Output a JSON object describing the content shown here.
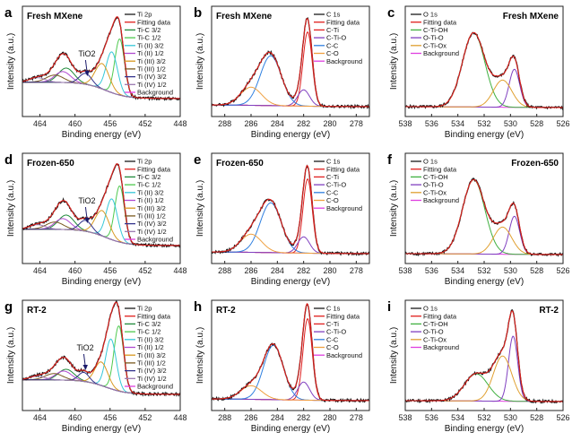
{
  "figure": {
    "rows": [
      "Fresh MXene",
      "Frozen-650",
      "RT-2"
    ],
    "columns": [
      "Ti 2p",
      "C 1s",
      "O 1s"
    ],
    "letters": [
      "a",
      "b",
      "c",
      "d",
      "e",
      "f",
      "g",
      "h",
      "i"
    ]
  },
  "colors": {
    "raw": "#1a1a1a",
    "fit": "#e0201c",
    "Ti-C": "#1f8a3a",
    "Ti-C-2": "#4ec94e",
    "TiII": "#36c8d8",
    "TiII-2": "#b04ad0",
    "TiIII": "#d99820",
    "TiIII-2": "#7a5a20",
    "TiIV": "#32328c",
    "TiIV-2": "#9a7ab0",
    "bg": "#e040e0",
    "C-Ti": "#e02020",
    "C-Ti-O": "#8040c0",
    "C-C": "#3080e0",
    "C-O": "#f0a040",
    "C-Ti-OH": "#40b040",
    "O-Ti-O": "#8040c0",
    "C-Ti-Ox": "#e0a030"
  },
  "chart_data": [
    {
      "id": "a",
      "type": "line",
      "title": "Fresh MXene",
      "xlabel": "Binding energy (eV)",
      "ylabel": "Intensity (a.u.)",
      "xlim": [
        466,
        448
      ],
      "xticks": [
        464,
        460,
        456,
        452,
        448
      ],
      "annotation": "TiO2",
      "annotation_x": 458.8,
      "legend": [
        "Ti 2p",
        "Fitting data",
        "Ti-C 3/2",
        "Ti-C 1/2",
        "Ti (II) 3/2",
        "Ti (II) 1/2",
        "Ti (III) 3/2",
        "Ti (III) 1/2",
        "Ti (IV) 3/2",
        "Ti (IV) 1/2",
        "Background"
      ],
      "legend_colors": [
        "raw",
        "fit",
        "Ti-C",
        "Ti-C-2",
        "TiII",
        "TiII-2",
        "TiIII",
        "TiIII-2",
        "TiIV",
        "TiIV-2",
        "bg"
      ],
      "bg": {
        "low": 0.12,
        "high": 0.3,
        "center": 456.5,
        "w": 1.2
      },
      "peaks": [
        {
          "c": 454.9,
          "a": 0.62,
          "w": 0.55,
          "color": "Ti-C-2"
        },
        {
          "c": 461.0,
          "a": 0.16,
          "w": 0.9,
          "color": "Ti-C"
        },
        {
          "c": 455.8,
          "a": 0.45,
          "w": 0.65,
          "color": "TiII"
        },
        {
          "c": 461.4,
          "a": 0.12,
          "w": 0.9,
          "color": "TiII-2"
        },
        {
          "c": 456.9,
          "a": 0.28,
          "w": 0.8,
          "color": "TiIII"
        },
        {
          "c": 462.3,
          "a": 0.08,
          "w": 1.0,
          "color": "TiIII-2"
        },
        {
          "c": 458.8,
          "a": 0.12,
          "w": 0.7,
          "color": "TiIV"
        },
        {
          "c": 464.3,
          "a": 0.05,
          "w": 0.9,
          "color": "TiIV-2"
        }
      ]
    },
    {
      "id": "b",
      "type": "line",
      "title": "Fresh MXene",
      "xlabel": "Binding energy (eV)",
      "ylabel": "Intensity (a.u.)",
      "xlim": [
        289,
        277
      ],
      "xticks": [
        288,
        286,
        284,
        282,
        280,
        278
      ],
      "legend": [
        "C 1s",
        "Fitting data",
        "C-Ti",
        "C-Ti-O",
        "C-C",
        "C-O",
        "Background"
      ],
      "legend_colors": [
        "raw",
        "fit",
        "C-Ti",
        "C-Ti-O",
        "C-C",
        "C-O",
        "bg"
      ],
      "bg": {
        "low": 0.03,
        "high": 0.05,
        "center": 284,
        "w": 2
      },
      "peaks": [
        {
          "c": 281.7,
          "a": 0.82,
          "w": 0.35,
          "color": "C-Ti"
        },
        {
          "c": 282.0,
          "a": 0.18,
          "w": 0.45,
          "color": "C-Ti-O"
        },
        {
          "c": 284.5,
          "a": 0.55,
          "w": 0.8,
          "color": "C-C"
        },
        {
          "c": 286.0,
          "a": 0.2,
          "w": 0.8,
          "color": "C-O"
        }
      ]
    },
    {
      "id": "c",
      "type": "line",
      "title": "Fresh MXene",
      "xlabel": "Binding energy (eV)",
      "ylabel": "Intensity (a.u.)",
      "xlim": [
        538,
        526
      ],
      "xticks": [
        538,
        536,
        534,
        532,
        530,
        528,
        526
      ],
      "legend": [
        "O 1s",
        "Fitting data",
        "C-Ti-OH",
        "O-Ti-O",
        "C-Ti-Ox",
        "Background"
      ],
      "legend_colors": [
        "raw",
        "fit",
        "C-Ti-OH",
        "O-Ti-O",
        "C-Ti-Ox",
        "bg"
      ],
      "bg": {
        "low": 0.02,
        "high": 0.03,
        "center": 532,
        "w": 2
      },
      "peaks": [
        {
          "c": 532.8,
          "a": 0.82,
          "w": 0.85,
          "color": "C-Ti-OH"
        },
        {
          "c": 529.7,
          "a": 0.42,
          "w": 0.4,
          "color": "O-Ti-O"
        },
        {
          "c": 530.6,
          "a": 0.3,
          "w": 0.7,
          "color": "C-Ti-Ox"
        }
      ]
    },
    {
      "id": "d",
      "type": "line",
      "title": "Frozen-650",
      "xlabel": "Binding energy (eV)",
      "ylabel": "Intensity (a.u.)",
      "xlim": [
        466,
        448
      ],
      "xticks": [
        464,
        460,
        456,
        452,
        448
      ],
      "annotation": "TiO2",
      "annotation_x": 458.8,
      "legend": [
        "Ti 2p",
        "Fitting data",
        "Ti-C 3/2",
        "Ti-C 1/2",
        "Ti (II) 3/2",
        "Ti (II) 1/2",
        "Ti (III) 3/2",
        "Ti (III) 1/2",
        "Ti (IV) 3/2",
        "Ti (IV) 1/2",
        "Background"
      ],
      "legend_colors": [
        "raw",
        "fit",
        "Ti-C",
        "Ti-C-2",
        "TiII",
        "TiII-2",
        "TiIII",
        "TiIII-2",
        "TiIV",
        "TiIV-2",
        "bg"
      ],
      "bg": {
        "low": 0.12,
        "high": 0.3,
        "center": 456.5,
        "w": 1.2
      },
      "peaks": [
        {
          "c": 454.9,
          "a": 0.62,
          "w": 0.55,
          "color": "Ti-C-2"
        },
        {
          "c": 461.0,
          "a": 0.16,
          "w": 0.9,
          "color": "Ti-C"
        },
        {
          "c": 455.8,
          "a": 0.45,
          "w": 0.65,
          "color": "TiII"
        },
        {
          "c": 461.4,
          "a": 0.12,
          "w": 0.9,
          "color": "TiII-2"
        },
        {
          "c": 456.9,
          "a": 0.28,
          "w": 0.8,
          "color": "TiIII"
        },
        {
          "c": 462.3,
          "a": 0.08,
          "w": 1.0,
          "color": "TiIII-2"
        },
        {
          "c": 458.8,
          "a": 0.12,
          "w": 0.7,
          "color": "TiIV"
        },
        {
          "c": 464.3,
          "a": 0.05,
          "w": 0.9,
          "color": "TiIV-2"
        }
      ]
    },
    {
      "id": "e",
      "type": "line",
      "title": "Frozen-650",
      "xlabel": "Binding energy (eV)",
      "ylabel": "Intensity (a.u.)",
      "xlim": [
        289,
        277
      ],
      "xticks": [
        288,
        286,
        284,
        282,
        280,
        278
      ],
      "legend": [
        "C 1s",
        "Fitting data",
        "C-Ti",
        "C-Ti-O",
        "C-C",
        "C-O",
        "Background"
      ],
      "legend_colors": [
        "raw",
        "fit",
        "C-Ti",
        "C-Ti-O",
        "C-C",
        "C-O",
        "bg"
      ],
      "bg": {
        "low": 0.03,
        "high": 0.05,
        "center": 284,
        "w": 2
      },
      "peaks": [
        {
          "c": 281.7,
          "a": 0.82,
          "w": 0.35,
          "color": "C-Ti"
        },
        {
          "c": 282.0,
          "a": 0.18,
          "w": 0.45,
          "color": "C-Ti-O"
        },
        {
          "c": 284.5,
          "a": 0.55,
          "w": 0.8,
          "color": "C-C"
        },
        {
          "c": 286.0,
          "a": 0.2,
          "w": 0.8,
          "color": "C-O"
        }
      ]
    },
    {
      "id": "f",
      "type": "line",
      "title": "Frozen-650",
      "xlabel": "Binding energy (eV)",
      "ylabel": "Intensity (a.u.)",
      "xlim": [
        538,
        526
      ],
      "xticks": [
        538,
        536,
        534,
        532,
        530,
        528,
        526
      ],
      "legend": [
        "O 1s",
        "Fitting data",
        "C-Ti-OH",
        "O-Ti-O",
        "C-Ti-Ox",
        "Background"
      ],
      "legend_colors": [
        "raw",
        "fit",
        "C-Ti-OH",
        "O-Ti-O",
        "C-Ti-Ox",
        "bg"
      ],
      "bg": {
        "low": 0.02,
        "high": 0.03,
        "center": 532,
        "w": 2
      },
      "peaks": [
        {
          "c": 532.8,
          "a": 0.82,
          "w": 0.85,
          "color": "C-Ti-OH"
        },
        {
          "c": 529.7,
          "a": 0.42,
          "w": 0.4,
          "color": "O-Ti-O"
        },
        {
          "c": 530.6,
          "a": 0.3,
          "w": 0.7,
          "color": "C-Ti-Ox"
        }
      ]
    },
    {
      "id": "g",
      "type": "line",
      "title": "RT-2",
      "xlabel": "Binding energy (eV)",
      "ylabel": "Intensity (a.u.)",
      "xlim": [
        466,
        448
      ],
      "xticks": [
        464,
        460,
        456,
        452,
        448
      ],
      "annotation": "TiO2",
      "annotation_x": 459.0,
      "legend": [
        "Ti 2p",
        "Fitting data",
        "Ti-C 3/2",
        "Ti-C 1/2",
        "Ti (II) 3/2",
        "Ti (II) 1/2",
        "Ti (III) 3/2",
        "Ti (III) 1/2",
        "Ti (IV) 3/2",
        "Ti (IV) 1/2",
        "Background"
      ],
      "legend_colors": [
        "raw",
        "fit",
        "Ti-C",
        "Ti-C-2",
        "TiII",
        "TiII-2",
        "TiIII",
        "TiIII-2",
        "TiIV",
        "TiIV-2",
        "bg"
      ],
      "bg": {
        "low": 0.1,
        "high": 0.26,
        "center": 456.5,
        "w": 1.2
      },
      "peaks": [
        {
          "c": 455.0,
          "a": 0.72,
          "w": 0.55,
          "color": "Ti-C-2"
        },
        {
          "c": 461.0,
          "a": 0.12,
          "w": 0.9,
          "color": "Ti-C"
        },
        {
          "c": 455.9,
          "a": 0.55,
          "w": 0.6,
          "color": "TiII"
        },
        {
          "c": 461.3,
          "a": 0.1,
          "w": 0.9,
          "color": "TiII-2"
        },
        {
          "c": 457.0,
          "a": 0.26,
          "w": 0.75,
          "color": "TiIII"
        },
        {
          "c": 462.4,
          "a": 0.07,
          "w": 1.0,
          "color": "TiIII-2"
        },
        {
          "c": 459.0,
          "a": 0.1,
          "w": 0.6,
          "color": "TiIV"
        },
        {
          "c": 464.3,
          "a": 0.04,
          "w": 0.9,
          "color": "TiIV-2"
        }
      ]
    },
    {
      "id": "h",
      "type": "line",
      "title": "RT-2",
      "xlabel": "Binding energy (eV)",
      "ylabel": "Intensity (a.u.)",
      "xlim": [
        289,
        277
      ],
      "xticks": [
        288,
        286,
        284,
        282,
        280,
        278
      ],
      "legend": [
        "C 1s",
        "Fitting data",
        "C-Ti",
        "C-Ti-O",
        "C-C",
        "C-O",
        "Background"
      ],
      "legend_colors": [
        "raw",
        "fit",
        "C-Ti",
        "C-Ti-O",
        "C-C",
        "C-O",
        "bg"
      ],
      "bg": {
        "low": 0.03,
        "high": 0.05,
        "center": 284,
        "w": 2
      },
      "peaks": [
        {
          "c": 281.7,
          "a": 0.9,
          "w": 0.35,
          "color": "C-Ti"
        },
        {
          "c": 282.0,
          "a": 0.2,
          "w": 0.45,
          "color": "C-Ti-O"
        },
        {
          "c": 284.3,
          "a": 0.6,
          "w": 0.75,
          "color": "C-C"
        },
        {
          "c": 286.0,
          "a": 0.15,
          "w": 0.8,
          "color": "C-O"
        }
      ]
    },
    {
      "id": "i",
      "type": "line",
      "title": "RT-2",
      "xlabel": "Binding energy (eV)",
      "ylabel": "Intensity (a.u.)",
      "xlim": [
        538,
        526
      ],
      "xticks": [
        538,
        536,
        534,
        532,
        530,
        528,
        526
      ],
      "legend": [
        "O 1s",
        "Fitting data",
        "C-Ti-OH",
        "O-Ti-O",
        "C-Ti-Ox",
        "Background"
      ],
      "legend_colors": [
        "raw",
        "fit",
        "C-Ti-OH",
        "O-Ti-O",
        "C-Ti-Ox",
        "bg"
      ],
      "bg": {
        "low": 0.02,
        "high": 0.03,
        "center": 532,
        "w": 2
      },
      "peaks": [
        {
          "c": 532.6,
          "a": 0.3,
          "w": 0.9,
          "color": "C-Ti-OH"
        },
        {
          "c": 529.8,
          "a": 0.72,
          "w": 0.35,
          "color": "O-Ti-O"
        },
        {
          "c": 530.6,
          "a": 0.5,
          "w": 0.7,
          "color": "C-Ti-Ox"
        }
      ]
    }
  ]
}
